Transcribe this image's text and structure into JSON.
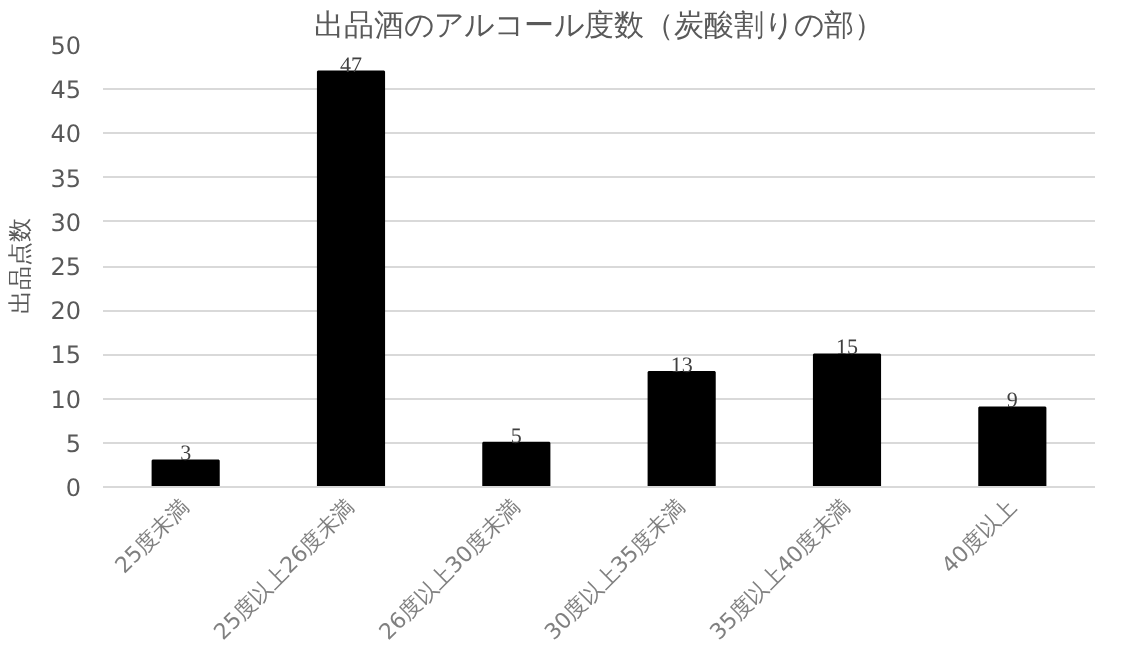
{
  "chart_data": {
    "type": "bar",
    "title": "出品酒のアルコール度数（炭酸割りの部）",
    "ylabel": "出品点数",
    "categories": [
      "25度未満",
      "25度以上26度未満",
      "26度以上30度未満",
      "30度以上35度未満",
      "35度以上40度未満",
      "40度以上"
    ],
    "values": [
      3,
      47,
      5,
      13,
      15,
      9
    ],
    "color": "#000000",
    "ylim": [
      0,
      50
    ],
    "yticks": [
      0,
      5,
      10,
      15,
      20,
      25,
      30,
      35,
      40,
      45,
      50
    ],
    "grid": "y",
    "data_labels": true
  }
}
